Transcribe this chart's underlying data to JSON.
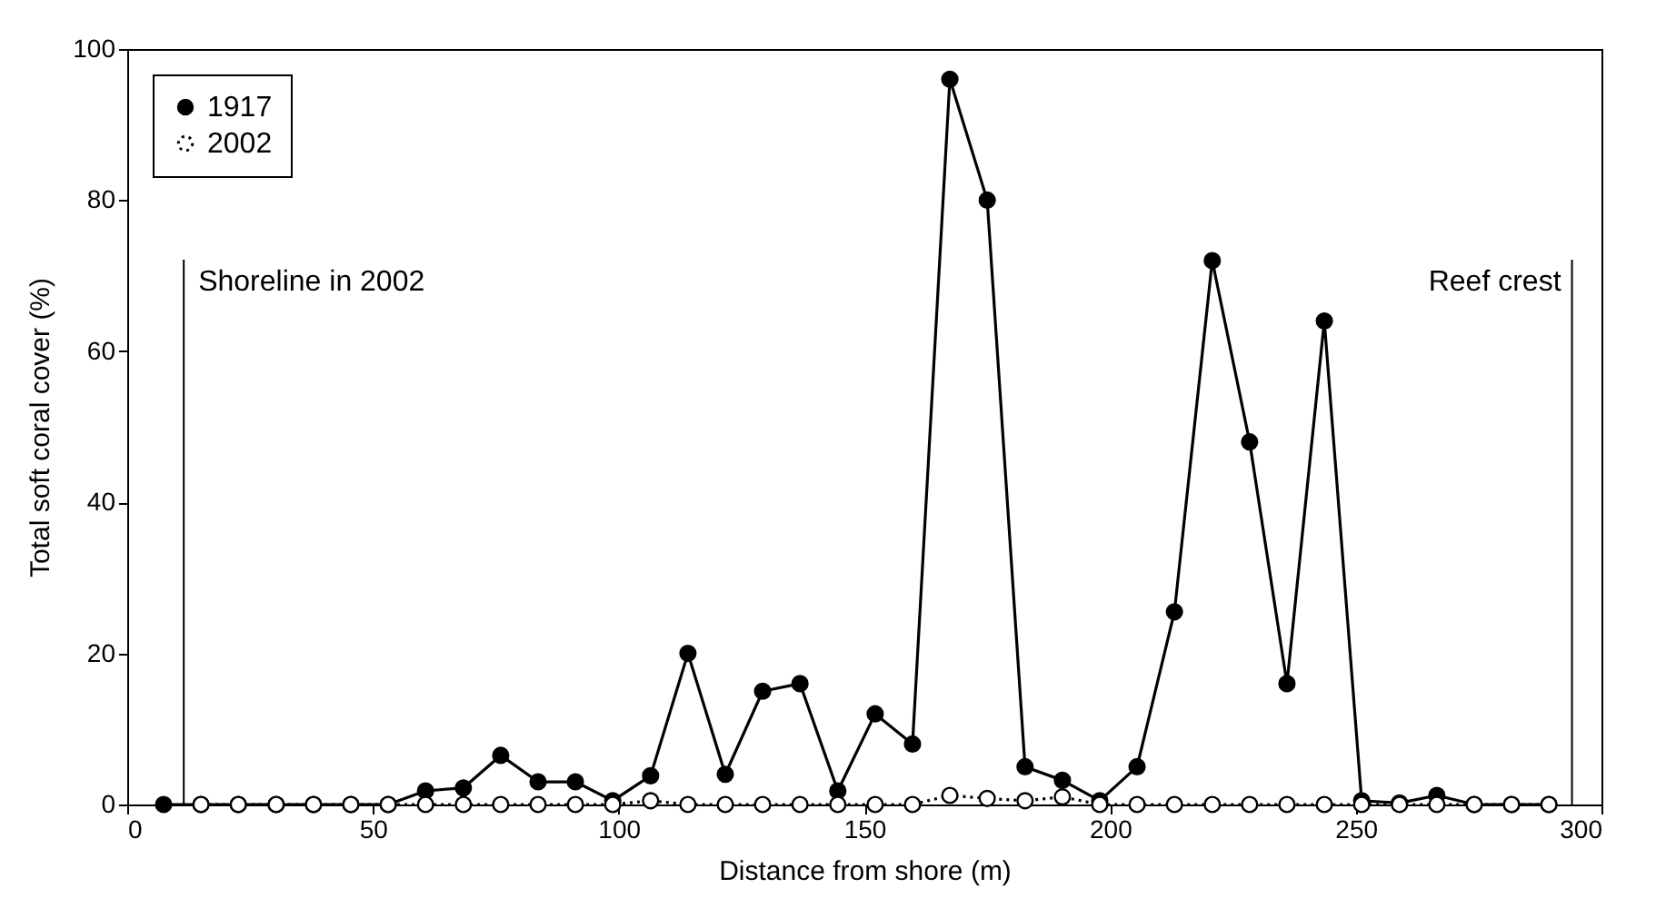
{
  "chart_data": {
    "type": "line",
    "xlabel": "Distance from shore (m)",
    "ylabel": "Total soft coral cover (%)",
    "xlim": [
      0,
      300
    ],
    "xticks": [
      0,
      50,
      100,
      150,
      200,
      250,
      300
    ],
    "ylim": [
      0,
      100
    ],
    "yticks": [
      0,
      20,
      40,
      60,
      80,
      100
    ],
    "grid": false,
    "legend": "top left",
    "marker": "circle",
    "series": [
      {
        "name": "1917",
        "color": "#000000",
        "line_style": "solid",
        "x": [
          7.4,
          15.0,
          22.6,
          30.3,
          37.9,
          45.5,
          53.1,
          60.7,
          68.4,
          76.0,
          83.6,
          91.2,
          98.8,
          106.5,
          114.1,
          121.7,
          129.3,
          136.9,
          144.6,
          152.2,
          159.8,
          167.4,
          175.0,
          182.7,
          190.3,
          197.9,
          205.5,
          213.1,
          220.8,
          228.4,
          236.0,
          243.6,
          251.2,
          258.9,
          266.5,
          274.1,
          281.7,
          289.3
        ],
        "values": [
          0,
          0,
          0,
          0,
          0,
          0,
          0,
          1.8,
          2.2,
          6.5,
          3,
          3,
          0.5,
          3.8,
          20,
          4,
          15,
          16,
          1.8,
          12,
          8,
          96,
          80,
          5,
          3.2,
          0.5,
          5,
          25.5,
          72,
          48,
          16,
          64,
          0.5,
          0.2,
          1.2,
          0,
          0,
          0
        ]
      },
      {
        "name": "2002",
        "color": "#000000",
        "line_style": "dotted",
        "x": [
          15.0,
          22.6,
          30.3,
          37.9,
          45.5,
          53.1,
          60.7,
          68.4,
          76.0,
          83.6,
          91.2,
          98.8,
          106.5,
          114.1,
          121.7,
          129.3,
          136.9,
          144.6,
          152.2,
          159.8,
          167.4,
          175.0,
          182.7,
          190.3,
          197.9,
          205.5,
          213.1,
          220.8,
          228.4,
          236.0,
          243.6,
          251.2,
          258.9,
          266.5,
          274.1,
          281.7,
          289.3
        ],
        "values": [
          0,
          0,
          0,
          0,
          0,
          0,
          0,
          0,
          0,
          0,
          0,
          0,
          0.5,
          0,
          0,
          0,
          0,
          0,
          0,
          0,
          1.2,
          0.8,
          0.5,
          1,
          0,
          0,
          0,
          0,
          0,
          0,
          0,
          0,
          0,
          0,
          0,
          0,
          0
        ]
      }
    ],
    "ref_lines": [
      {
        "axis": "x",
        "value": 11.5,
        "label": "Shoreline in 2002"
      },
      {
        "axis": "x",
        "value": 294,
        "label": "Reef crest"
      }
    ]
  }
}
